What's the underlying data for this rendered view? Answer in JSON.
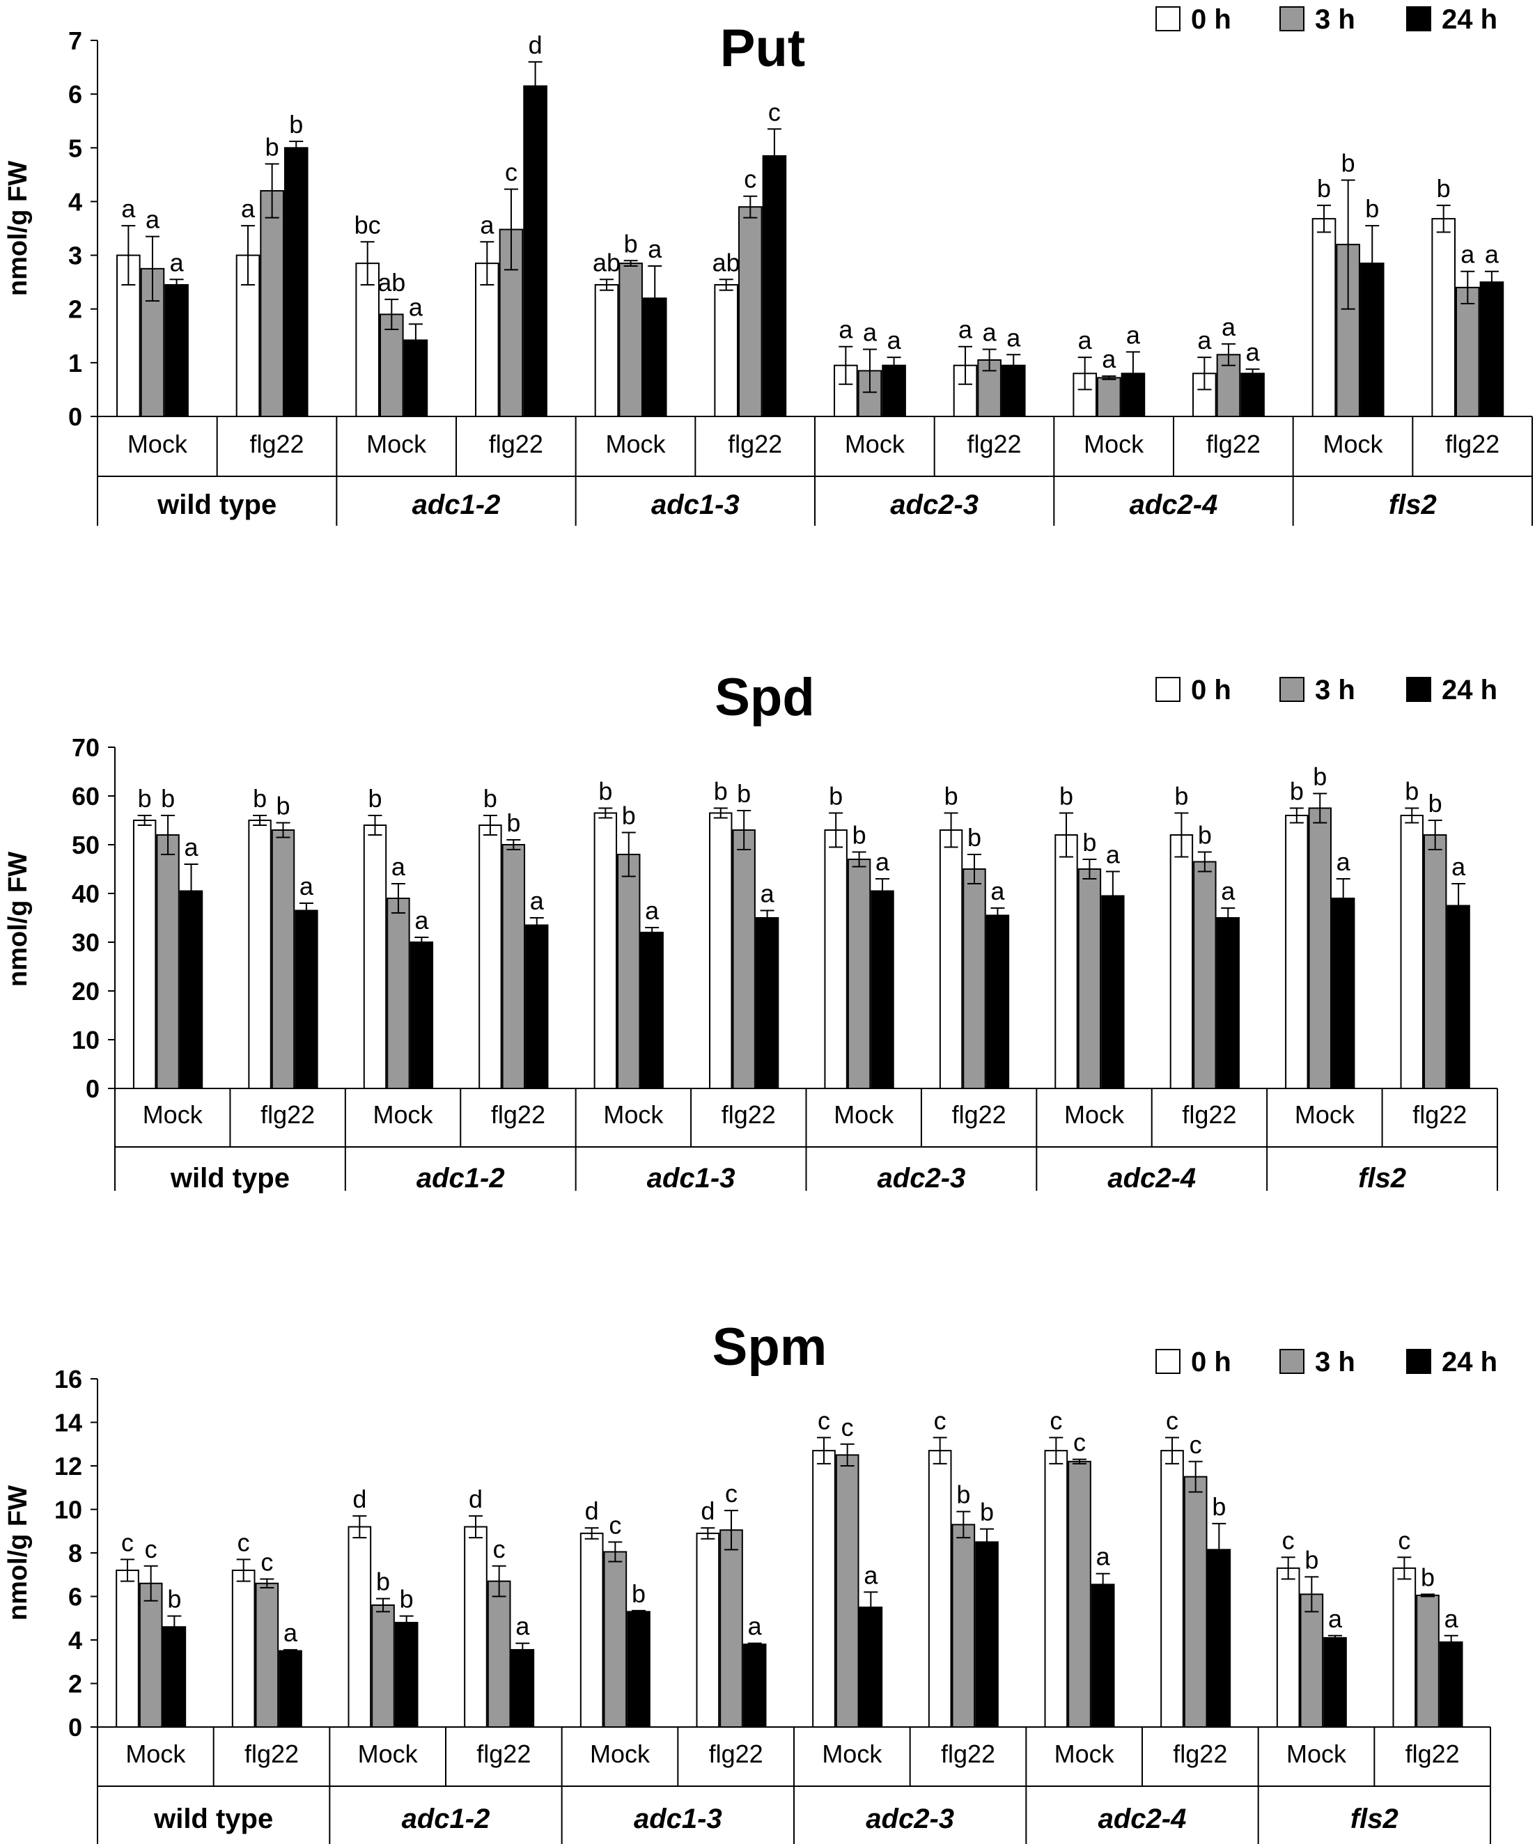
{
  "figure": {
    "description_visible": false
  },
  "legend": {
    "entries": [
      {
        "label": "0 h",
        "color": "#ffffff"
      },
      {
        "label": "3 h",
        "color": "#999999"
      },
      {
        "label": "24 h",
        "color": "#000000"
      }
    ]
  },
  "chart_data": [
    {
      "type": "bar",
      "title": "Put",
      "ylabel": "nmol/g FW",
      "ylim": [
        0,
        7
      ],
      "yticks": [
        "0",
        "1",
        "2",
        "3",
        "4",
        "5",
        "6",
        "7"
      ],
      "genotypes": [
        "wild type",
        "adc1-2",
        "adc1-3",
        "adc2-3",
        "adc2-4",
        "fls2"
      ],
      "genotype_italic": [
        false,
        true,
        true,
        true,
        true,
        true
      ],
      "treatments": [
        "Mock",
        "flg22"
      ],
      "series_names": [
        "0 h",
        "3 h",
        "24 h"
      ],
      "values": [
        [
          3.0,
          2.75,
          2.45
        ],
        [
          3.0,
          4.2,
          5.0
        ],
        [
          2.85,
          1.9,
          1.42
        ],
        [
          2.85,
          3.48,
          6.15
        ],
        [
          2.45,
          2.85,
          2.2
        ],
        [
          2.45,
          3.9,
          4.85
        ],
        [
          0.95,
          0.85,
          0.95
        ],
        [
          0.95,
          1.05,
          0.95
        ],
        [
          0.8,
          0.72,
          0.8
        ],
        [
          0.8,
          1.15,
          0.8
        ],
        [
          3.68,
          3.2,
          2.85
        ],
        [
          3.68,
          2.4,
          2.5
        ]
      ],
      "errors": [
        [
          0.55,
          0.6,
          0.1
        ],
        [
          0.55,
          0.5,
          0.12
        ],
        [
          0.4,
          0.28,
          0.3
        ],
        [
          0.4,
          0.75,
          0.45
        ],
        [
          0.1,
          0.05,
          0.6
        ],
        [
          0.1,
          0.2,
          0.5
        ],
        [
          0.35,
          0.4,
          0.15
        ],
        [
          0.35,
          0.2,
          0.2
        ],
        [
          0.3,
          0.03,
          0.4
        ],
        [
          0.3,
          0.2,
          0.08
        ],
        [
          0.25,
          1.2,
          0.7
        ],
        [
          0.25,
          0.3,
          0.2
        ]
      ],
      "letters": [
        [
          "a",
          "a",
          "a"
        ],
        [
          "a",
          "b",
          "b"
        ],
        [
          "bc",
          "ab",
          "a"
        ],
        [
          "a",
          "c",
          "d"
        ],
        [
          "ab",
          "b",
          "a"
        ],
        [
          "ab",
          "c",
          "c"
        ],
        [
          "a",
          "a",
          "a"
        ],
        [
          "a",
          "a",
          "a"
        ],
        [
          "a",
          "a",
          "a"
        ],
        [
          "a",
          "a",
          "a"
        ],
        [
          "b",
          "b",
          "b"
        ],
        [
          "b",
          "a",
          "a"
        ]
      ]
    },
    {
      "type": "bar",
      "title": "Spd",
      "ylabel": "nmol/g FW",
      "ylim": [
        0,
        70
      ],
      "yticks": [
        "0",
        "10",
        "20",
        "30",
        "40",
        "50",
        "60",
        "70"
      ],
      "genotypes": [
        "wild type",
        "adc1-2",
        "adc1-3",
        "adc2-3",
        "adc2-4",
        "fls2"
      ],
      "genotype_italic": [
        false,
        true,
        true,
        true,
        true,
        true
      ],
      "treatments": [
        "Mock",
        "flg22"
      ],
      "series_names": [
        "0 h",
        "3 h",
        "24 h"
      ],
      "values": [
        [
          55,
          52,
          40.5
        ],
        [
          55,
          53,
          36.5
        ],
        [
          54,
          39,
          30
        ],
        [
          54,
          50,
          33.5
        ],
        [
          56.5,
          48,
          32
        ],
        [
          56.5,
          53,
          35
        ],
        [
          53,
          47,
          40.5
        ],
        [
          53,
          45,
          35.5
        ],
        [
          52,
          45,
          39.5
        ],
        [
          52,
          46.5,
          35
        ],
        [
          56,
          57.5,
          39
        ],
        [
          56,
          52,
          37.5
        ]
      ],
      "errors": [
        [
          1.0,
          4.0,
          5.5
        ],
        [
          1.0,
          1.5,
          1.5
        ],
        [
          2.0,
          3.0,
          1.0
        ],
        [
          2.0,
          1.0,
          1.5
        ],
        [
          1.0,
          4.5,
          1.0
        ],
        [
          1.0,
          4.0,
          1.5
        ],
        [
          3.5,
          1.5,
          2.5
        ],
        [
          3.5,
          3.0,
          1.5
        ],
        [
          4.5,
          2.0,
          5.0
        ],
        [
          4.5,
          2.0,
          2.0
        ],
        [
          1.5,
          3.0,
          4.0
        ],
        [
          1.5,
          3.0,
          4.5
        ]
      ],
      "letters": [
        [
          "b",
          "b",
          "a"
        ],
        [
          "b",
          "b",
          "a"
        ],
        [
          "b",
          "a",
          "a"
        ],
        [
          "b",
          "b",
          "a"
        ],
        [
          "b",
          "b",
          "a"
        ],
        [
          "b",
          "b",
          "a"
        ],
        [
          "b",
          "b",
          "a"
        ],
        [
          "b",
          "b",
          "a"
        ],
        [
          "b",
          "b",
          "a"
        ],
        [
          "b",
          "b",
          "a"
        ],
        [
          "b",
          "b",
          "a"
        ],
        [
          "b",
          "b",
          "a"
        ]
      ]
    },
    {
      "type": "bar",
      "title": "Spm",
      "ylabel": "nmol/g FW",
      "ylim": [
        0,
        16
      ],
      "yticks": [
        "0",
        "2",
        "4",
        "6",
        "8",
        "10",
        "12",
        "14",
        "16"
      ],
      "genotypes": [
        "wild type",
        "adc1-2",
        "adc1-3",
        "adc2-3",
        "adc2-4",
        "fls2"
      ],
      "genotype_italic": [
        false,
        true,
        true,
        true,
        true,
        true
      ],
      "treatments": [
        "Mock",
        "flg22"
      ],
      "series_names": [
        "0 h",
        "3 h",
        "24 h"
      ],
      "values": [
        [
          7.2,
          6.6,
          4.6
        ],
        [
          7.2,
          6.6,
          3.5
        ],
        [
          9.2,
          5.6,
          4.8
        ],
        [
          9.2,
          6.7,
          3.55
        ],
        [
          8.9,
          8.05,
          5.3
        ],
        [
          8.9,
          9.05,
          3.8
        ],
        [
          12.7,
          12.5,
          5.5
        ],
        [
          12.7,
          9.3,
          8.5
        ],
        [
          12.7,
          12.2,
          6.55
        ],
        [
          12.7,
          11.5,
          8.15
        ],
        [
          7.3,
          6.1,
          4.1
        ],
        [
          7.3,
          6.05,
          3.9
        ]
      ],
      "errors": [
        [
          0.5,
          0.8,
          0.5
        ],
        [
          0.5,
          0.2,
          0.05
        ],
        [
          0.5,
          0.3,
          0.3
        ],
        [
          0.5,
          0.7,
          0.3
        ],
        [
          0.25,
          0.45,
          0.05
        ],
        [
          0.25,
          0.9,
          0.05
        ],
        [
          0.6,
          0.5,
          0.7
        ],
        [
          0.6,
          0.6,
          0.6
        ],
        [
          0.6,
          0.1,
          0.5
        ],
        [
          0.6,
          0.7,
          1.2
        ],
        [
          0.5,
          0.8,
          0.1
        ],
        [
          0.5,
          0.05,
          0.3
        ]
      ],
      "letters": [
        [
          "c",
          "c",
          "b"
        ],
        [
          "c",
          "c",
          "a"
        ],
        [
          "d",
          "b",
          "b"
        ],
        [
          "d",
          "c",
          "a"
        ],
        [
          "d",
          "c",
          "b"
        ],
        [
          "d",
          "c",
          "a"
        ],
        [
          "c",
          "c",
          "a"
        ],
        [
          "c",
          "b",
          "b"
        ],
        [
          "c",
          "c",
          "a"
        ],
        [
          "c",
          "c",
          "b"
        ],
        [
          "c",
          "b",
          "a"
        ],
        [
          "c",
          "b",
          "a"
        ]
      ]
    }
  ]
}
